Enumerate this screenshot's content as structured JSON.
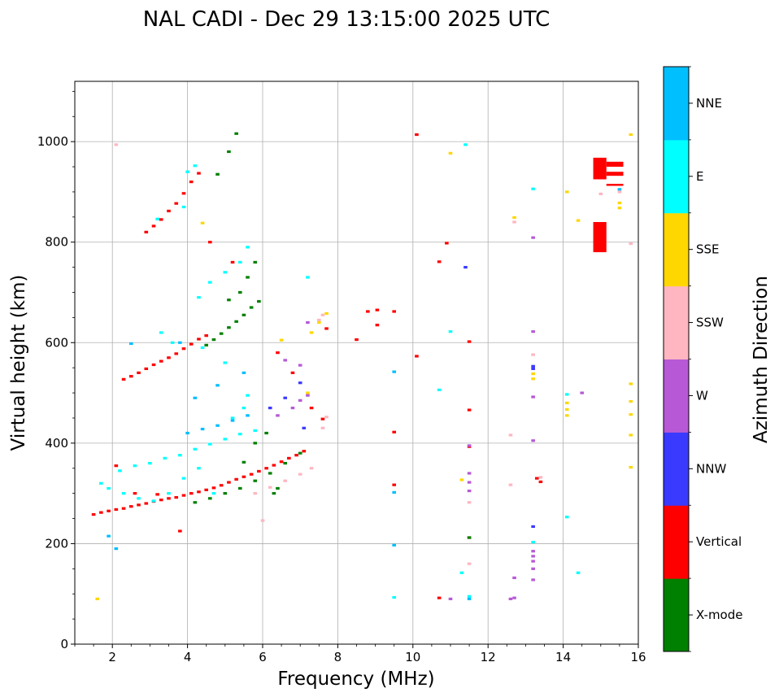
{
  "chart_data": {
    "type": "scatter",
    "title": "NAL CADI - Dec 29 13:15:00 2025 UTC",
    "xlabel": "Frequency (MHz)",
    "ylabel": "Virtual height (km)",
    "xlim": [
      1,
      16
    ],
    "ylim": [
      0,
      1120
    ],
    "xticks": [
      2,
      4,
      6,
      8,
      10,
      12,
      14,
      16
    ],
    "xtick_labels": [
      "2",
      "4",
      "6",
      "8",
      "10",
      "12",
      "14",
      "16"
    ],
    "yticks": [
      0,
      200,
      400,
      600,
      800,
      1000
    ],
    "ytick_labels": [
      "0",
      "200",
      "400",
      "600",
      "800",
      "1000"
    ],
    "grid": true,
    "colorbar": {
      "label": "Azimuth Direction",
      "position": "right",
      "categories": [
        {
          "name": "X-mode",
          "color": "#008000"
        },
        {
          "name": "Vertical",
          "color": "#ff0000"
        },
        {
          "name": "NNW",
          "color": "#3a3aff"
        },
        {
          "name": "W",
          "color": "#b759d6"
        },
        {
          "name": "SSW",
          "color": "#ffb6c1"
        },
        {
          "name": "SSE",
          "color": "#ffd700"
        },
        {
          "name": "E",
          "color": "#00ffff"
        },
        {
          "name": "NNE",
          "color": "#00bfff"
        }
      ]
    },
    "series": [
      {
        "name": "Vertical",
        "points": [
          [
            1.5,
            258
          ],
          [
            1.7,
            262
          ],
          [
            1.9,
            265
          ],
          [
            2.1,
            268
          ],
          [
            2.3,
            270
          ],
          [
            2.5,
            274
          ],
          [
            2.7,
            277
          ],
          [
            2.9,
            280
          ],
          [
            3.1,
            284
          ],
          [
            3.3,
            287
          ],
          [
            3.5,
            290
          ],
          [
            3.7,
            292
          ],
          [
            3.9,
            296
          ],
          [
            4.1,
            300
          ],
          [
            4.3,
            303
          ],
          [
            4.5,
            307
          ],
          [
            4.7,
            311
          ],
          [
            4.9,
            316
          ],
          [
            5.1,
            322
          ],
          [
            5.3,
            328
          ],
          [
            5.5,
            333
          ],
          [
            5.7,
            338
          ],
          [
            5.9,
            344
          ],
          [
            6.1,
            350
          ],
          [
            6.3,
            356
          ],
          [
            6.5,
            363
          ],
          [
            6.7,
            370
          ],
          [
            6.9,
            376
          ],
          [
            7.1,
            384
          ],
          [
            2.3,
            527
          ],
          [
            2.5,
            533
          ],
          [
            2.7,
            540
          ],
          [
            2.9,
            548
          ],
          [
            3.1,
            556
          ],
          [
            3.3,
            563
          ],
          [
            3.5,
            570
          ],
          [
            3.7,
            578
          ],
          [
            3.9,
            588
          ],
          [
            4.1,
            597
          ],
          [
            4.3,
            607
          ],
          [
            4.5,
            614
          ],
          [
            2.9,
            820
          ],
          [
            3.1,
            832
          ],
          [
            3.3,
            845
          ],
          [
            3.5,
            862
          ],
          [
            3.7,
            877
          ],
          [
            3.9,
            897
          ],
          [
            4.1,
            920
          ],
          [
            4.3,
            937
          ],
          [
            2.1,
            355
          ],
          [
            2.6,
            300
          ],
          [
            3.2,
            298
          ],
          [
            3.8,
            225
          ],
          [
            4.6,
            800
          ],
          [
            5.2,
            760
          ],
          [
            6.4,
            580
          ],
          [
            6.8,
            540
          ],
          [
            7.3,
            470
          ],
          [
            7.6,
            448
          ],
          [
            7.7,
            628
          ],
          [
            8.5,
            606
          ],
          [
            8.8,
            662
          ],
          [
            9.05,
            665
          ],
          [
            9.05,
            635
          ],
          [
            9.5,
            662
          ],
          [
            9.5,
            422
          ],
          [
            9.5,
            317
          ],
          [
            10.1,
            1014
          ],
          [
            10.1,
            573
          ],
          [
            10.7,
            761
          ],
          [
            10.9,
            798
          ],
          [
            11.5,
            602
          ],
          [
            11.5,
            466
          ],
          [
            11.5,
            393
          ],
          [
            11.5,
            212
          ],
          [
            13.4,
            323
          ],
          [
            13.3,
            330
          ],
          [
            10.7,
            92
          ],
          [
            14.9,
            790
          ],
          [
            14.9,
            810
          ],
          [
            14.9,
            830
          ]
        ]
      },
      {
        "name": "X-mode",
        "points": [
          [
            4.5,
            595
          ],
          [
            4.7,
            606
          ],
          [
            4.9,
            618
          ],
          [
            5.1,
            630
          ],
          [
            5.3,
            642
          ],
          [
            5.5,
            655
          ],
          [
            5.7,
            670
          ],
          [
            5.9,
            682
          ],
          [
            5.1,
            685
          ],
          [
            5.4,
            700
          ],
          [
            5.6,
            730
          ],
          [
            5.8,
            760
          ],
          [
            4.2,
            282
          ],
          [
            4.6,
            290
          ],
          [
            5.0,
            300
          ],
          [
            5.4,
            310
          ],
          [
            5.8,
            325
          ],
          [
            6.2,
            340
          ],
          [
            6.6,
            360
          ],
          [
            7.0,
            380
          ],
          [
            6.3,
            300
          ],
          [
            5.5,
            362
          ],
          [
            5.8,
            400
          ],
          [
            6.1,
            420
          ],
          [
            6.4,
            310
          ],
          [
            5.3,
            1016
          ],
          [
            5.1,
            980
          ],
          [
            4.8,
            935
          ],
          [
            11.5,
            212
          ]
        ]
      },
      {
        "name": "E",
        "points": [
          [
            2.2,
            345
          ],
          [
            2.6,
            355
          ],
          [
            3.0,
            360
          ],
          [
            3.4,
            370
          ],
          [
            3.8,
            376
          ],
          [
            4.2,
            388
          ],
          [
            4.6,
            398
          ],
          [
            5.0,
            408
          ],
          [
            5.4,
            418
          ],
          [
            5.8,
            425
          ],
          [
            1.7,
            320
          ],
          [
            1.9,
            310
          ],
          [
            2.3,
            300
          ],
          [
            2.7,
            290
          ],
          [
            3.1,
            285
          ],
          [
            3.5,
            300
          ],
          [
            3.9,
            330
          ],
          [
            4.3,
            350
          ],
          [
            4.7,
            300
          ],
          [
            5.2,
            450
          ],
          [
            5.5,
            470
          ],
          [
            5.6,
            495
          ],
          [
            5.0,
            560
          ],
          [
            4.4,
            590
          ],
          [
            3.6,
            600
          ],
          [
            3.3,
            620
          ],
          [
            4.0,
            940
          ],
          [
            4.2,
            952
          ],
          [
            3.2,
            846
          ],
          [
            4.3,
            690
          ],
          [
            4.6,
            720
          ],
          [
            5.0,
            740
          ],
          [
            5.4,
            760
          ],
          [
            5.6,
            790
          ],
          [
            3.9,
            870
          ],
          [
            11.0,
            622
          ],
          [
            10.7,
            506
          ],
          [
            11.4,
            994
          ],
          [
            13.2,
            906
          ],
          [
            14.1,
            497
          ],
          [
            13.2,
            203
          ],
          [
            11.3,
            142
          ],
          [
            11.5,
            95
          ],
          [
            9.5,
            93
          ],
          [
            14.1,
            253
          ],
          [
            14.4,
            142
          ],
          [
            7.2,
            730
          ]
        ]
      },
      {
        "name": "NNE",
        "points": [
          [
            4.0,
            420
          ],
          [
            4.4,
            428
          ],
          [
            4.8,
            435
          ],
          [
            5.2,
            445
          ],
          [
            5.6,
            455
          ],
          [
            4.2,
            490
          ],
          [
            4.8,
            515
          ],
          [
            5.5,
            540
          ],
          [
            3.8,
            600
          ],
          [
            2.5,
            598
          ],
          [
            1.9,
            215
          ],
          [
            2.1,
            190
          ],
          [
            9.5,
            542
          ],
          [
            9.5,
            302
          ],
          [
            9.5,
            197
          ],
          [
            11.5,
            90
          ],
          [
            15.5,
            905
          ]
        ]
      },
      {
        "name": "SSW",
        "points": [
          [
            5.8,
            300
          ],
          [
            6.2,
            312
          ],
          [
            6.6,
            325
          ],
          [
            7.0,
            338
          ],
          [
            7.3,
            350
          ],
          [
            7.6,
            430
          ],
          [
            7.7,
            452
          ],
          [
            7.5,
            645
          ],
          [
            7.6,
            655
          ],
          [
            12.6,
            416
          ],
          [
            12.6,
            317
          ],
          [
            13.2,
            576
          ],
          [
            13.2,
            492
          ],
          [
            13.4,
            332
          ],
          [
            12.7,
            840
          ],
          [
            15.0,
            896
          ],
          [
            15.5,
            900
          ],
          [
            15.8,
            797
          ],
          [
            11.5,
            282
          ],
          [
            11.5,
            160
          ],
          [
            6.0,
            246
          ],
          [
            2.1,
            994
          ]
        ]
      },
      {
        "name": "SSE",
        "points": [
          [
            7.3,
            620
          ],
          [
            7.5,
            640
          ],
          [
            7.7,
            658
          ],
          [
            6.5,
            605
          ],
          [
            7.2,
            500
          ],
          [
            12.7,
            849
          ],
          [
            13.2,
            528
          ],
          [
            13.2,
            538
          ],
          [
            14.1,
            900
          ],
          [
            14.1,
            480
          ],
          [
            14.1,
            467
          ],
          [
            14.1,
            455
          ],
          [
            14.4,
            843
          ],
          [
            15.5,
            878
          ],
          [
            15.5,
            868
          ],
          [
            15.8,
            1014
          ],
          [
            15.8,
            518
          ],
          [
            15.8,
            483
          ],
          [
            15.8,
            457
          ],
          [
            15.8,
            416
          ],
          [
            15.8,
            352
          ],
          [
            11.0,
            977
          ],
          [
            11.3,
            327
          ],
          [
            4.4,
            838
          ],
          [
            1.6,
            90
          ]
        ]
      },
      {
        "name": "W",
        "points": [
          [
            6.4,
            455
          ],
          [
            6.8,
            470
          ],
          [
            7.0,
            485
          ],
          [
            7.2,
            495
          ],
          [
            6.6,
            565
          ],
          [
            7.0,
            555
          ],
          [
            7.2,
            640
          ],
          [
            13.2,
            809
          ],
          [
            13.2,
            622
          ],
          [
            13.2,
            492
          ],
          [
            13.2,
            405
          ],
          [
            13.2,
            185
          ],
          [
            13.2,
            175
          ],
          [
            13.2,
            165
          ],
          [
            13.2,
            150
          ],
          [
            13.2,
            128
          ],
          [
            12.7,
            132
          ],
          [
            12.7,
            92
          ],
          [
            12.6,
            90
          ],
          [
            14.5,
            500
          ],
          [
            11.0,
            90
          ],
          [
            11.5,
            340
          ],
          [
            11.5,
            322
          ],
          [
            11.5,
            305
          ],
          [
            11.5,
            395
          ]
        ]
      },
      {
        "name": "NNW",
        "points": [
          [
            6.2,
            470
          ],
          [
            6.6,
            490
          ],
          [
            7.0,
            520
          ],
          [
            13.2,
            553
          ],
          [
            13.2,
            548
          ],
          [
            13.2,
            234
          ],
          [
            11.4,
            750
          ],
          [
            7.1,
            430
          ]
        ]
      }
    ],
    "blocks": [
      {
        "name": "Vertical",
        "f_range": [
          14.8,
          15.15
        ],
        "h_range": [
          925,
          968
        ]
      },
      {
        "name": "Vertical",
        "f_range": [
          14.8,
          15.15
        ],
        "h_range": [
          780,
          840
        ]
      },
      {
        "name": "Vertical",
        "f_range": [
          15.15,
          15.6
        ],
        "h_range": [
          950,
          960
        ]
      },
      {
        "name": "Vertical",
        "f_range": [
          15.15,
          15.6
        ],
        "h_range": [
          932,
          940
        ]
      },
      {
        "name": "Vertical",
        "f_range": [
          15.15,
          15.6
        ],
        "h_range": [
          912,
          916
        ]
      }
    ]
  }
}
